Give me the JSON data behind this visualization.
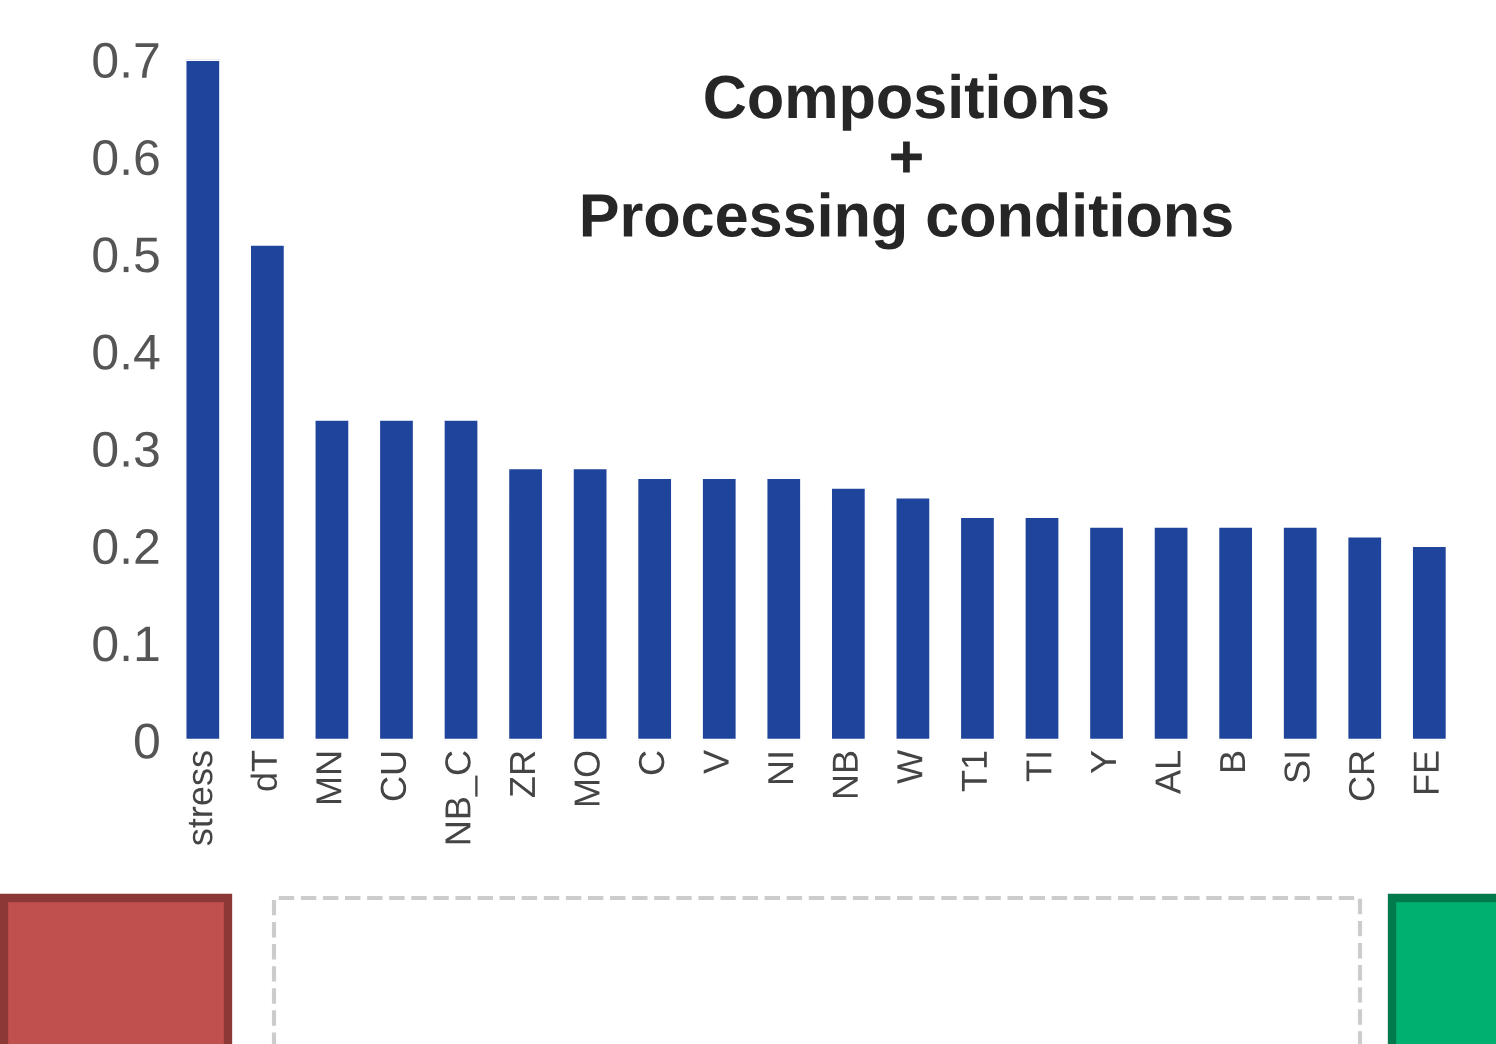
{
  "chart_data": {
    "type": "bar",
    "categories": [
      "stress",
      "dT",
      "MN",
      "CU",
      "NB_C",
      "ZR",
      "MO",
      "C",
      "V",
      "NI",
      "NB",
      "W",
      "T1",
      "TI",
      "Y",
      "AL",
      "B",
      "SI",
      "CR",
      "FE"
    ],
    "values": [
      0.7,
      0.51,
      0.33,
      0.33,
      0.33,
      0.28,
      0.28,
      0.27,
      0.27,
      0.27,
      0.26,
      0.25,
      0.23,
      0.23,
      0.22,
      0.22,
      0.22,
      0.22,
      0.21,
      0.2
    ],
    "color": "#1f449c",
    "ylim": [
      0,
      0.7
    ],
    "yticks": [
      0,
      0.1,
      0.2,
      0.3,
      0.4,
      0.5,
      0.6,
      0.7
    ],
    "grid": false,
    "annotations": [
      "Compositions\n+\nProcessing conditions"
    ]
  }
}
